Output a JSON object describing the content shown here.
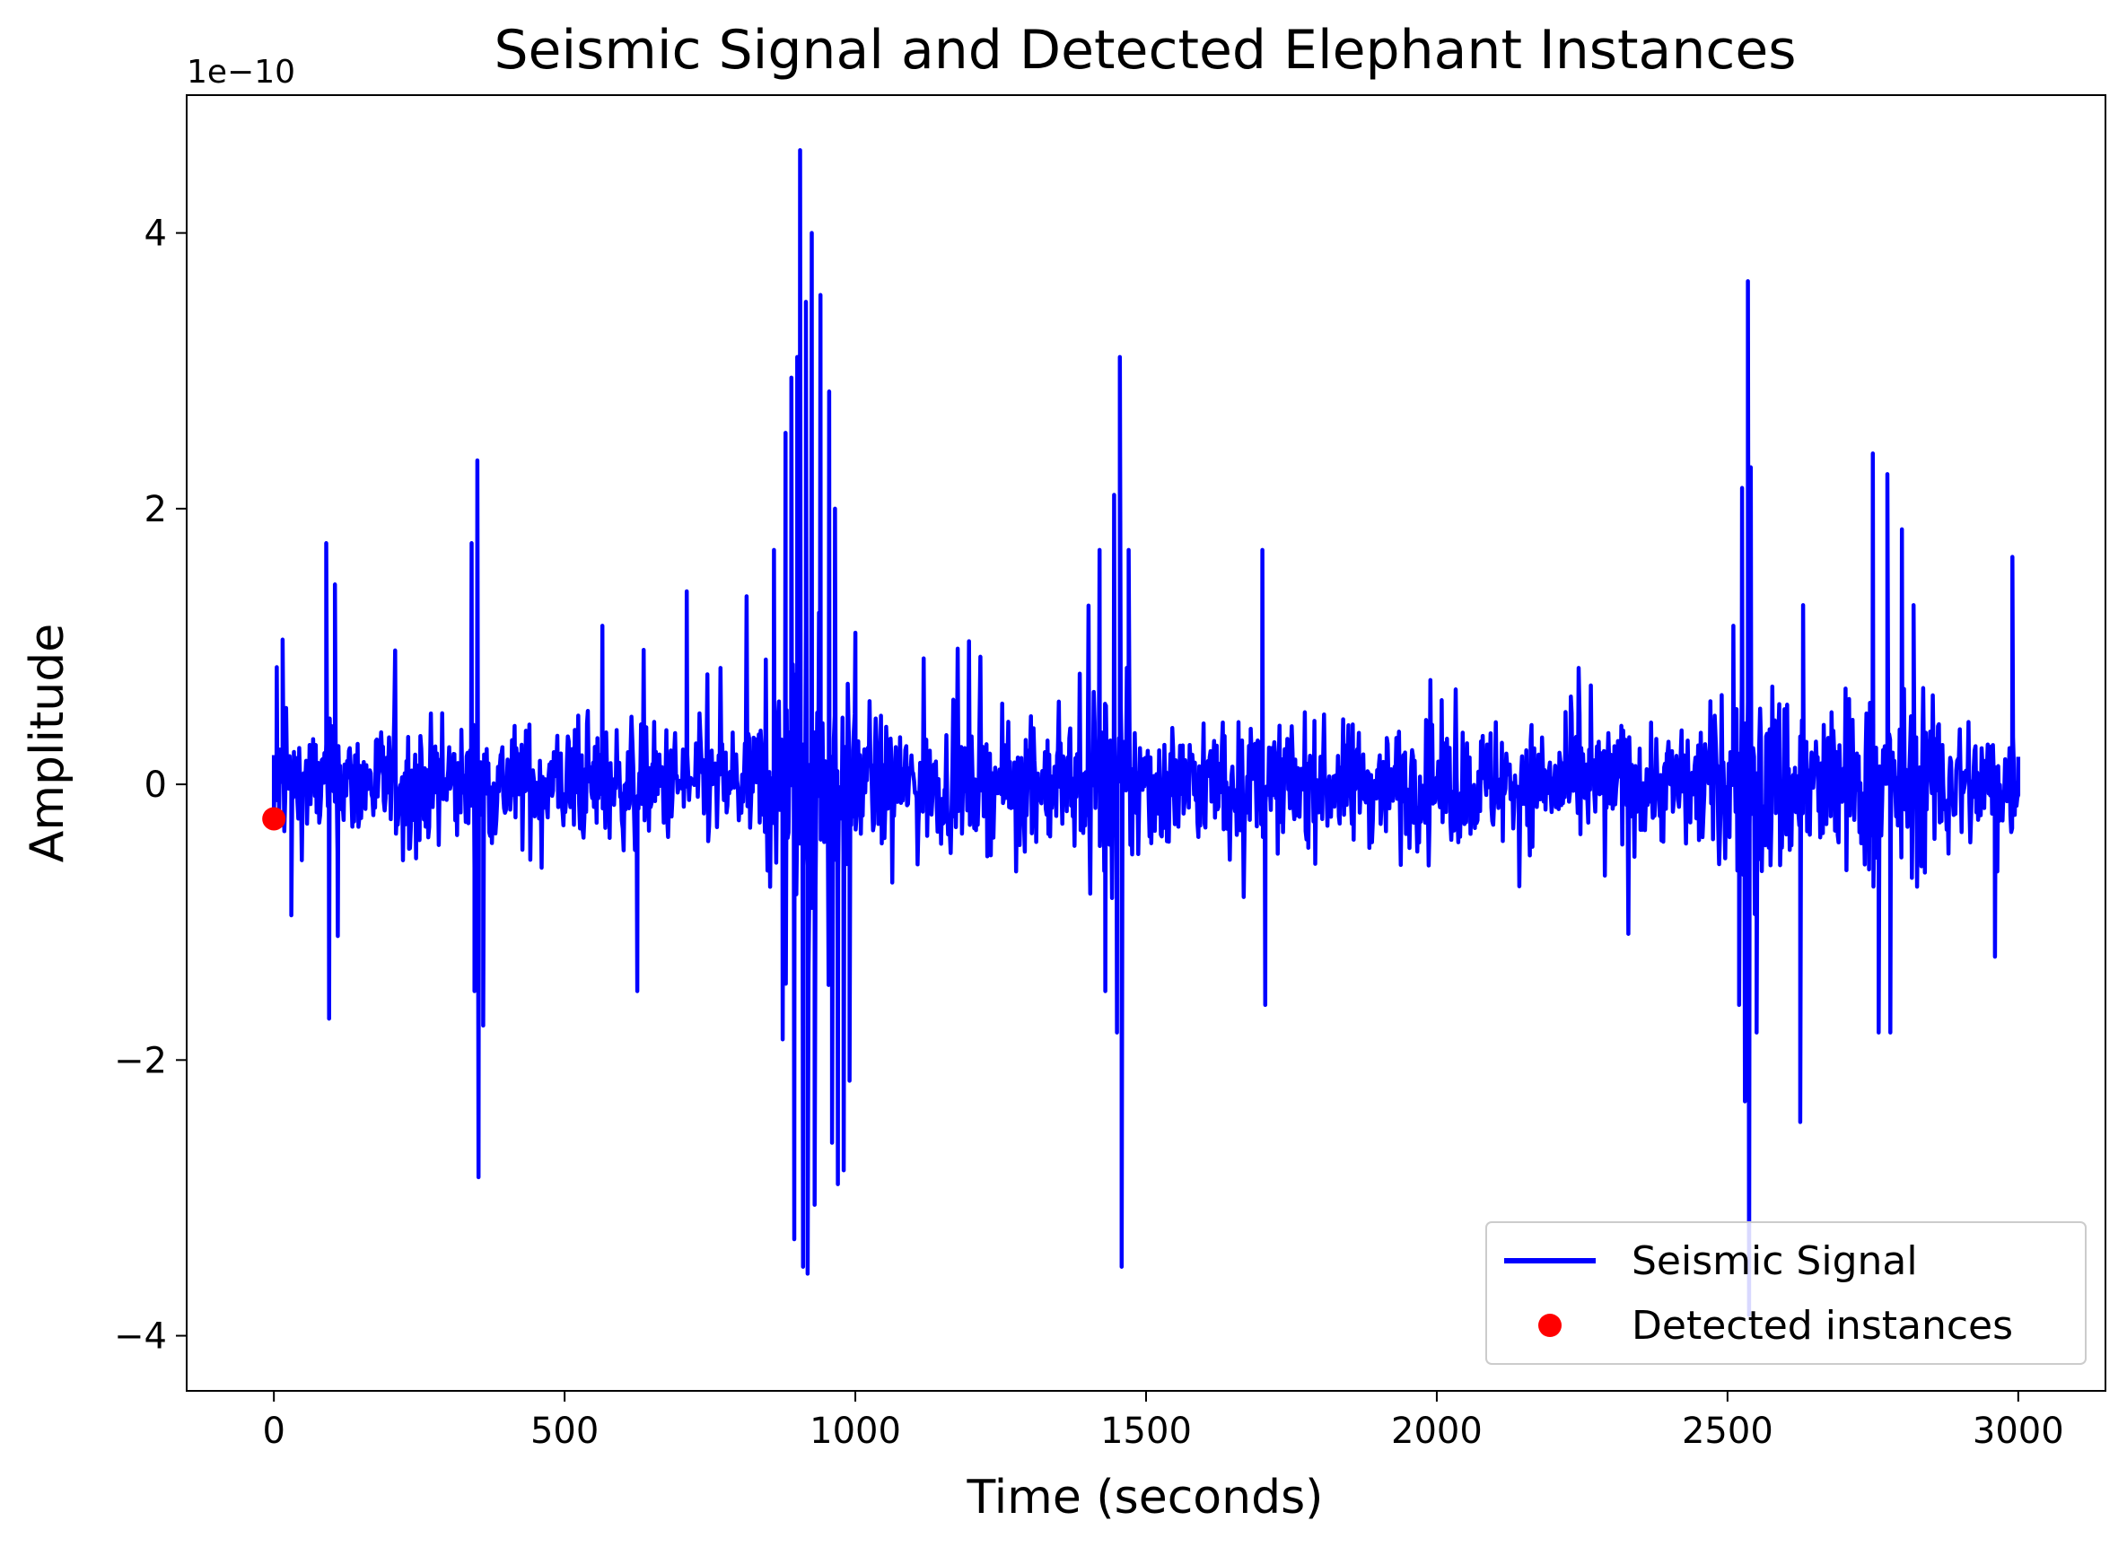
{
  "chart_data": {
    "type": "line",
    "title": "Seismic Signal and Detected Elephant Instances",
    "xlabel": "Time (seconds)",
    "ylabel": "Amplitude",
    "y_scale_label": "1e−10",
    "xlim": [
      -150,
      3150
    ],
    "ylim": [
      -4.4,
      5.0
    ],
    "x_ticks": [
      0,
      500,
      1000,
      1500,
      2000,
      2500,
      3000
    ],
    "x_tick_labels": [
      "0",
      "500",
      "1000",
      "1500",
      "2000",
      "2500",
      "3000"
    ],
    "y_ticks": [
      -4,
      -2,
      0,
      2,
      4
    ],
    "y_tick_labels": [
      "−4",
      "−2",
      "0",
      "2",
      "4"
    ],
    "grid": false,
    "legend_position": "lower-right",
    "colors": {
      "signal": "#0000ff",
      "detections": "#ff0000"
    },
    "series": [
      {
        "name": "Seismic Signal",
        "kind": "line",
        "duration": 3000,
        "spikes": [
          {
            "x": 0,
            "y": -0.25
          },
          {
            "x": 5,
            "y": 0.85
          },
          {
            "x": 15,
            "y": 1.05
          },
          {
            "x": 30,
            "y": -0.95
          },
          {
            "x": 90,
            "y": 1.75
          },
          {
            "x": 95,
            "y": -1.7
          },
          {
            "x": 105,
            "y": 1.45
          },
          {
            "x": 110,
            "y": -1.1
          },
          {
            "x": 340,
            "y": 1.75
          },
          {
            "x": 345,
            "y": -1.5
          },
          {
            "x": 350,
            "y": 2.35
          },
          {
            "x": 352,
            "y": -2.85
          },
          {
            "x": 360,
            "y": -1.75
          },
          {
            "x": 565,
            "y": 1.15
          },
          {
            "x": 625,
            "y": -1.5
          },
          {
            "x": 710,
            "y": 1.4
          },
          {
            "x": 860,
            "y": 1.7
          },
          {
            "x": 875,
            "y": -1.85
          },
          {
            "x": 880,
            "y": 2.55
          },
          {
            "x": 890,
            "y": 2.95
          },
          {
            "x": 895,
            "y": -3.3
          },
          {
            "x": 900,
            "y": 3.1
          },
          {
            "x": 905,
            "y": 4.6
          },
          {
            "x": 910,
            "y": -3.5
          },
          {
            "x": 915,
            "y": 3.5
          },
          {
            "x": 918,
            "y": -3.55
          },
          {
            "x": 925,
            "y": 4.0
          },
          {
            "x": 930,
            "y": -3.05
          },
          {
            "x": 940,
            "y": 3.55
          },
          {
            "x": 955,
            "y": 2.85
          },
          {
            "x": 960,
            "y": -2.6
          },
          {
            "x": 965,
            "y": 2.0
          },
          {
            "x": 970,
            "y": -2.9
          },
          {
            "x": 980,
            "y": -2.8
          },
          {
            "x": 990,
            "y": -2.15
          },
          {
            "x": 1000,
            "y": 1.1
          },
          {
            "x": 1420,
            "y": 1.7
          },
          {
            "x": 1430,
            "y": -1.5
          },
          {
            "x": 1445,
            "y": 2.1
          },
          {
            "x": 1450,
            "y": -1.8
          },
          {
            "x": 1455,
            "y": 3.1
          },
          {
            "x": 1458,
            "y": -3.5
          },
          {
            "x": 1470,
            "y": 1.7
          },
          {
            "x": 1700,
            "y": 1.7
          },
          {
            "x": 1705,
            "y": -1.6
          },
          {
            "x": 2510,
            "y": 1.15
          },
          {
            "x": 2520,
            "y": -1.6
          },
          {
            "x": 2525,
            "y": 2.15
          },
          {
            "x": 2530,
            "y": -2.3
          },
          {
            "x": 2535,
            "y": 3.65
          },
          {
            "x": 2537,
            "y": -3.85
          },
          {
            "x": 2540,
            "y": 2.3
          },
          {
            "x": 2550,
            "y": -1.8
          },
          {
            "x": 2625,
            "y": -2.45
          },
          {
            "x": 2630,
            "y": 1.3
          },
          {
            "x": 2750,
            "y": 2.4
          },
          {
            "x": 2760,
            "y": -1.8
          },
          {
            "x": 2775,
            "y": 2.25
          },
          {
            "x": 2780,
            "y": -1.8
          },
          {
            "x": 2800,
            "y": 1.85
          },
          {
            "x": 2820,
            "y": 1.3
          },
          {
            "x": 2960,
            "y": -1.25
          },
          {
            "x": 2990,
            "y": 1.65
          },
          {
            "x": 3000,
            "y": 0.2
          }
        ]
      },
      {
        "name": "Detected instances",
        "kind": "points",
        "points": [
          {
            "x": 0,
            "y": -0.25
          }
        ]
      }
    ]
  }
}
